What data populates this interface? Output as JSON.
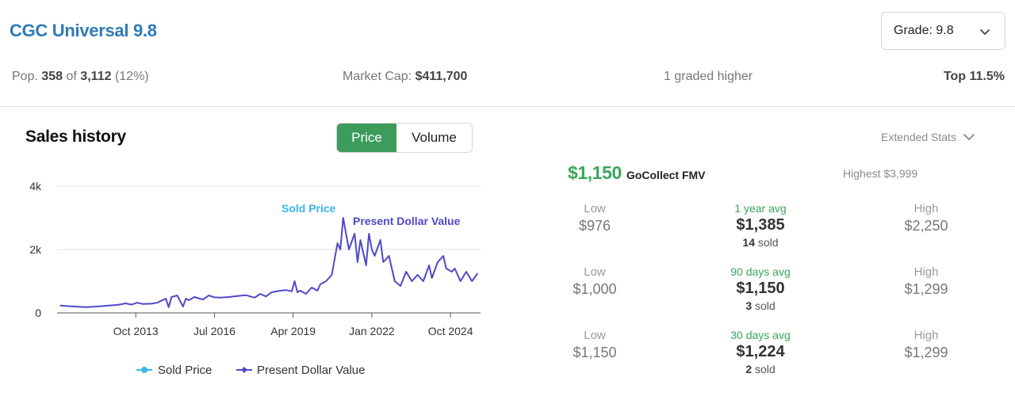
{
  "header": {
    "title": "CGC Universal 9.8",
    "grade_select": "Grade: 9.8"
  },
  "stats": {
    "pop_prefix": "Pop.",
    "pop_count": "358",
    "pop_of": "of",
    "pop_total": "3,112",
    "pop_pct": "(12%)",
    "market_cap_label": "Market Cap:",
    "market_cap_value": "$411,700",
    "graded_higher": "1 graded higher",
    "top": "Top 11.5%"
  },
  "sales": {
    "title": "Sales history",
    "toggle_price": "Price",
    "toggle_volume": "Volume",
    "extended_stats": "Extended Stats"
  },
  "fmv": {
    "value": "$1,150",
    "label": "GoCollect FMV",
    "highest": "Highest $3,999"
  },
  "averages": [
    {
      "low_label": "Low",
      "low": "$976",
      "period": "1 year avg",
      "avg": "$1,385",
      "sold_count": "14",
      "sold_word": "sold",
      "high_label": "High",
      "high": "$2,250"
    },
    {
      "low_label": "Low",
      "low": "$1,000",
      "period": "90 days avg",
      "avg": "$1,150",
      "sold_count": "3",
      "sold_word": "sold",
      "high_label": "High",
      "high": "$1,299"
    },
    {
      "low_label": "Low",
      "low": "$1,150",
      "period": "30 days avg",
      "avg": "$1,224",
      "sold_count": "2",
      "sold_word": "sold",
      "high_label": "High",
      "high": "$1,299"
    }
  ],
  "colors": {
    "title_blue": "#2e7ab8",
    "accent_green": "#3d9b5c",
    "sold_price": "#3bb3f0",
    "present_dollar": "#5048c9"
  },
  "chart_data": {
    "type": "line",
    "ylim": [
      0,
      4000
    ],
    "y_ticks": [
      {
        "value": 0,
        "label": "0"
      },
      {
        "value": 2000,
        "label": "2k"
      },
      {
        "value": 4000,
        "label": "4k"
      }
    ],
    "xlim": [
      2011.0,
      2025.8
    ],
    "x_ticks": [
      {
        "value": 2013.75,
        "label": "Oct 2013"
      },
      {
        "value": 2016.5,
        "label": "Jul 2016"
      },
      {
        "value": 2019.25,
        "label": "Apr 2019"
      },
      {
        "value": 2022.0,
        "label": "Jan 2022"
      },
      {
        "value": 2024.75,
        "label": "Oct 2024"
      }
    ],
    "annotations": [
      "Sold Price",
      "Present Dollar Value"
    ],
    "legend": [
      "Sold Price",
      "Present Dollar Value"
    ],
    "legend_position": "bottom",
    "series": [
      {
        "name": "Present Dollar Value",
        "x": [
          2011.1,
          2011.6,
          2012.0,
          2012.4,
          2012.8,
          2013.1,
          2013.4,
          2013.6,
          2013.8,
          2014.0,
          2014.3,
          2014.5,
          2014.8,
          2014.9,
          2015.0,
          2015.2,
          2015.4,
          2015.5,
          2015.6,
          2015.8,
          2016.1,
          2016.3,
          2016.5,
          2016.7,
          2017.0,
          2017.3,
          2017.6,
          2017.9,
          2018.1,
          2018.3,
          2018.5,
          2018.8,
          2019.0,
          2019.2,
          2019.3,
          2019.4,
          2019.5,
          2019.7,
          2019.9,
          2020.1,
          2020.2,
          2020.4,
          2020.6,
          2020.8,
          2020.9,
          2021.0,
          2021.1,
          2021.2,
          2021.4,
          2021.5,
          2021.6,
          2021.8,
          2021.9,
          2022.0,
          2022.1,
          2022.3,
          2022.4,
          2022.6,
          2022.8,
          2023.0,
          2023.2,
          2023.4,
          2023.6,
          2023.8,
          2024.0,
          2024.1,
          2024.3,
          2024.5,
          2024.6,
          2024.8,
          2024.9,
          2025.1,
          2025.3,
          2025.5,
          2025.7
        ],
        "y": [
          230,
          200,
          180,
          200,
          230,
          250,
          300,
          260,
          320,
          280,
          290,
          320,
          450,
          180,
          500,
          550,
          200,
          450,
          400,
          500,
          420,
          550,
          490,
          480,
          500,
          530,
          560,
          480,
          600,
          520,
          650,
          700,
          720,
          680,
          1000,
          650,
          700,
          600,
          800,
          700,
          900,
          1000,
          1200,
          2200,
          2000,
          3000,
          2500,
          2000,
          2500,
          1600,
          2300,
          1500,
          2500,
          2000,
          1800,
          2300,
          1600,
          1800,
          1000,
          850,
          1300,
          1000,
          1200,
          1000,
          1500,
          1100,
          1600,
          1800,
          1400,
          1300,
          1400,
          1000,
          1300,
          1000,
          1250
        ]
      }
    ]
  }
}
